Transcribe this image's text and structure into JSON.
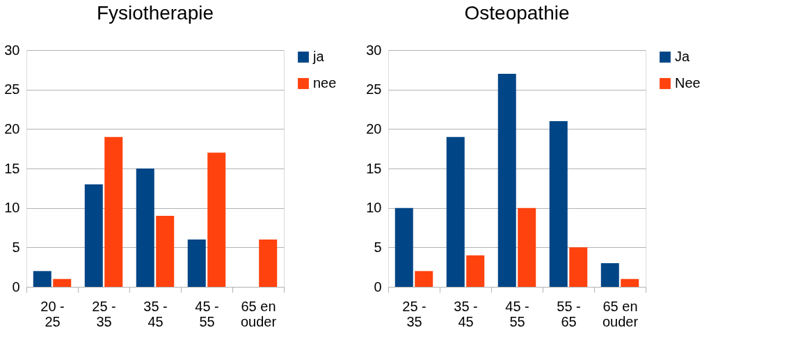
{
  "chart_data": [
    {
      "type": "bar",
      "title": "Fysiotherapie",
      "categories": [
        "20 - 25",
        "25 - 35",
        "35 - 45",
        "45 - 55",
        "65 en ouder"
      ],
      "series": [
        {
          "name": "ja",
          "color": "#004586",
          "values": [
            2,
            13,
            15,
            6,
            0
          ]
        },
        {
          "name": "nee",
          "color": "#ff420e",
          "values": [
            1,
            19,
            9,
            17,
            6
          ]
        }
      ],
      "ylim": [
        0,
        30
      ],
      "yticks": [
        0,
        5,
        10,
        15,
        20,
        25,
        30
      ],
      "grid": "y",
      "legend": "right"
    },
    {
      "type": "bar",
      "title": "Osteopathie",
      "categories": [
        "25 - 35",
        "35 - 45",
        "45 - 55",
        "55 - 65",
        "65 en ouder"
      ],
      "series": [
        {
          "name": "Ja",
          "color": "#004586",
          "values": [
            10,
            19,
            27,
            21,
            3
          ]
        },
        {
          "name": "Nee",
          "color": "#ff420e",
          "values": [
            2,
            4,
            10,
            5,
            1
          ]
        }
      ],
      "ylim": [
        0,
        30
      ],
      "yticks": [
        0,
        5,
        10,
        15,
        20,
        25,
        30
      ],
      "grid": "y",
      "legend": "right"
    }
  ]
}
